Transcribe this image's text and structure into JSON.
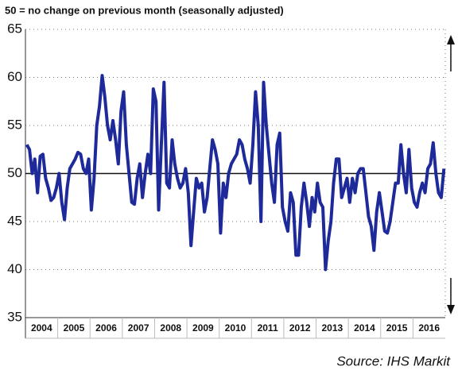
{
  "chart_data": {
    "type": "line",
    "title": "50 = no change on previous month (seasonally adjusted)",
    "source": "Source: IHS Markit",
    "categories": [
      "2004",
      "2005",
      "2006",
      "2007",
      "2008",
      "2009",
      "2010",
      "2011",
      "2012",
      "2013",
      "2014",
      "2015",
      "2016"
    ],
    "values": [
      [
        53,
        52.5,
        50,
        51.5,
        48,
        51.8,
        52,
        49.5,
        48.5,
        47.2,
        47.5,
        48.5
      ],
      [
        50,
        47,
        45.2,
        48.5,
        50.5,
        51,
        51.5,
        52.2,
        52,
        50.5,
        50,
        51.5
      ],
      [
        46.2,
        49.5,
        55,
        57,
        60.2,
        58,
        55,
        53.5,
        55.5,
        53.5,
        51,
        56.5
      ],
      [
        58.5,
        53,
        50,
        47,
        46.8,
        49.5,
        51,
        47.5,
        50,
        52,
        50,
        58.8
      ],
      [
        57.5,
        46.2,
        53,
        59.5,
        49,
        48.5,
        53.5,
        51,
        49.5,
        48.5,
        49,
        50.5
      ],
      [
        48,
        42.5,
        46,
        49.5,
        48.5,
        49,
        46,
        47.5,
        50.5,
        53.5,
        52.5,
        51
      ],
      [
        43.8,
        49,
        47.5,
        50,
        51,
        51.5,
        52,
        53.5,
        53,
        51.5,
        50.5,
        49
      ],
      [
        53,
        58.5,
        55,
        45,
        59.5,
        55,
        52,
        49,
        47,
        53,
        54.2,
        46.5
      ],
      [
        45,
        44,
        48,
        47,
        41.5,
        41.5,
        46.5,
        49,
        47,
        44.5,
        47.5,
        46
      ],
      [
        49,
        47,
        46.5,
        40,
        43,
        45,
        49,
        51.5,
        51.5,
        47.5,
        48.5,
        49.5
      ],
      [
        47,
        49.5,
        48,
        50,
        50.5,
        50.5,
        48,
        45.5,
        44.5,
        42,
        46,
        48
      ],
      [
        46,
        44,
        43.8,
        45,
        47,
        49,
        49,
        53,
        50,
        48,
        52.5,
        48.5
      ],
      [
        47,
        46.5,
        48,
        49,
        48,
        50.5,
        51,
        53.2,
        50,
        48,
        47.5,
        50.5
      ]
    ],
    "color": "#1f2a9a",
    "ylim": [
      35,
      65
    ],
    "yticks": [
      35,
      40,
      45,
      50,
      55,
      60,
      65
    ],
    "grid": true,
    "baseline": 50
  }
}
